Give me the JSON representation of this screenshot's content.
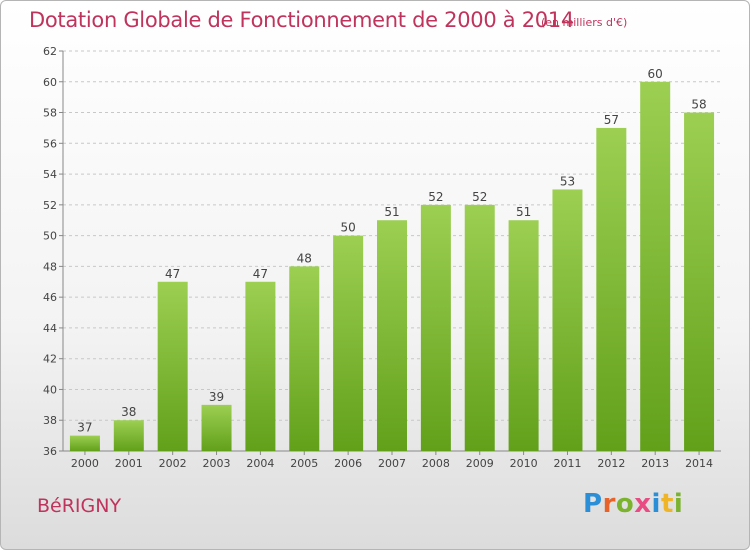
{
  "title": "Dotation Globale de Fonctionnement de 2000 à 2014",
  "subtitle": "(en milliers d'€)",
  "commune": "BéRIGNY",
  "logo_text": "Proxiti",
  "colors": {
    "accent": "#c0335c",
    "bar_light": "#9ccf52",
    "bar_dark": "#62a01a",
    "logo": [
      "#2a8fd6",
      "#e8632a",
      "#7bb32e",
      "#e94b83",
      "#2a8fd6",
      "#f0b429",
      "#7bb32e"
    ]
  },
  "chart_data": {
    "type": "bar",
    "title": "Dotation Globale de Fonctionnement de 2000 à 2014",
    "subtitle": "(en milliers d'€)",
    "categories": [
      "2000",
      "2001",
      "2002",
      "2003",
      "2004",
      "2005",
      "2006",
      "2007",
      "2008",
      "2009",
      "2010",
      "2011",
      "2012",
      "2013",
      "2014"
    ],
    "values": [
      37,
      38,
      47,
      39,
      47,
      48,
      50,
      51,
      52,
      52,
      51,
      53,
      57,
      60,
      58
    ],
    "ylim": [
      36,
      62
    ],
    "yticks": [
      36,
      38,
      40,
      42,
      44,
      46,
      48,
      50,
      52,
      54,
      56,
      58,
      60,
      62
    ],
    "grid": true,
    "grid_style": "dashed",
    "legend": "none"
  }
}
